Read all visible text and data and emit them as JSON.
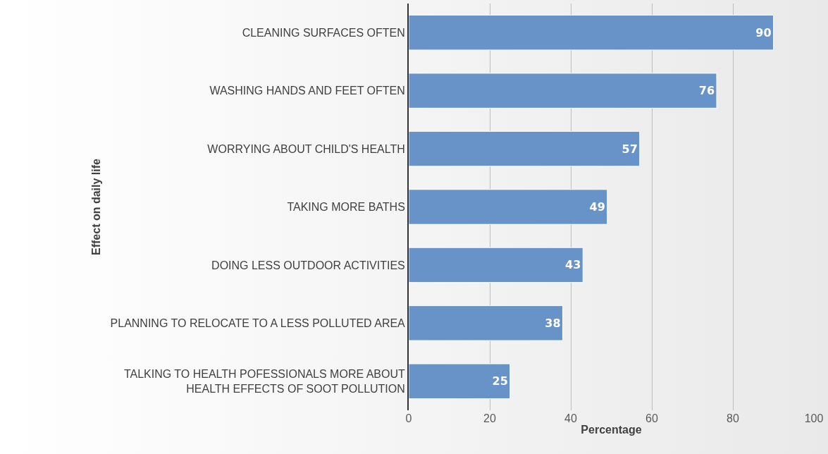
{
  "chart_data": {
    "type": "bar",
    "orientation": "horizontal",
    "xlabel": "Percentage",
    "ylabel": "Effect on daily life",
    "categories": [
      "CLEANING SURFACES OFTEN",
      "WASHING HANDS AND FEET OFTEN",
      "WORRYING ABOUT CHILD'S HEALTH",
      "TAKING MORE BATHS",
      "DOING LESS OUTDOOR ACTIVITIES",
      "PLANNING TO RELOCATE TO A LESS POLLUTED AREA",
      "TALKING TO HEALTH POFESSIONALS MORE ABOUT\nHEALTH EFFECTS OF SOOT POLLUTION"
    ],
    "values": [
      90,
      76,
      57,
      49,
      43,
      38,
      25
    ],
    "color": "#6893c9",
    "xlim": [
      0,
      100
    ],
    "xticks": [
      0,
      20,
      40,
      60,
      80,
      100
    ],
    "grid": "x",
    "data_labels": true,
    "legend": false
  }
}
